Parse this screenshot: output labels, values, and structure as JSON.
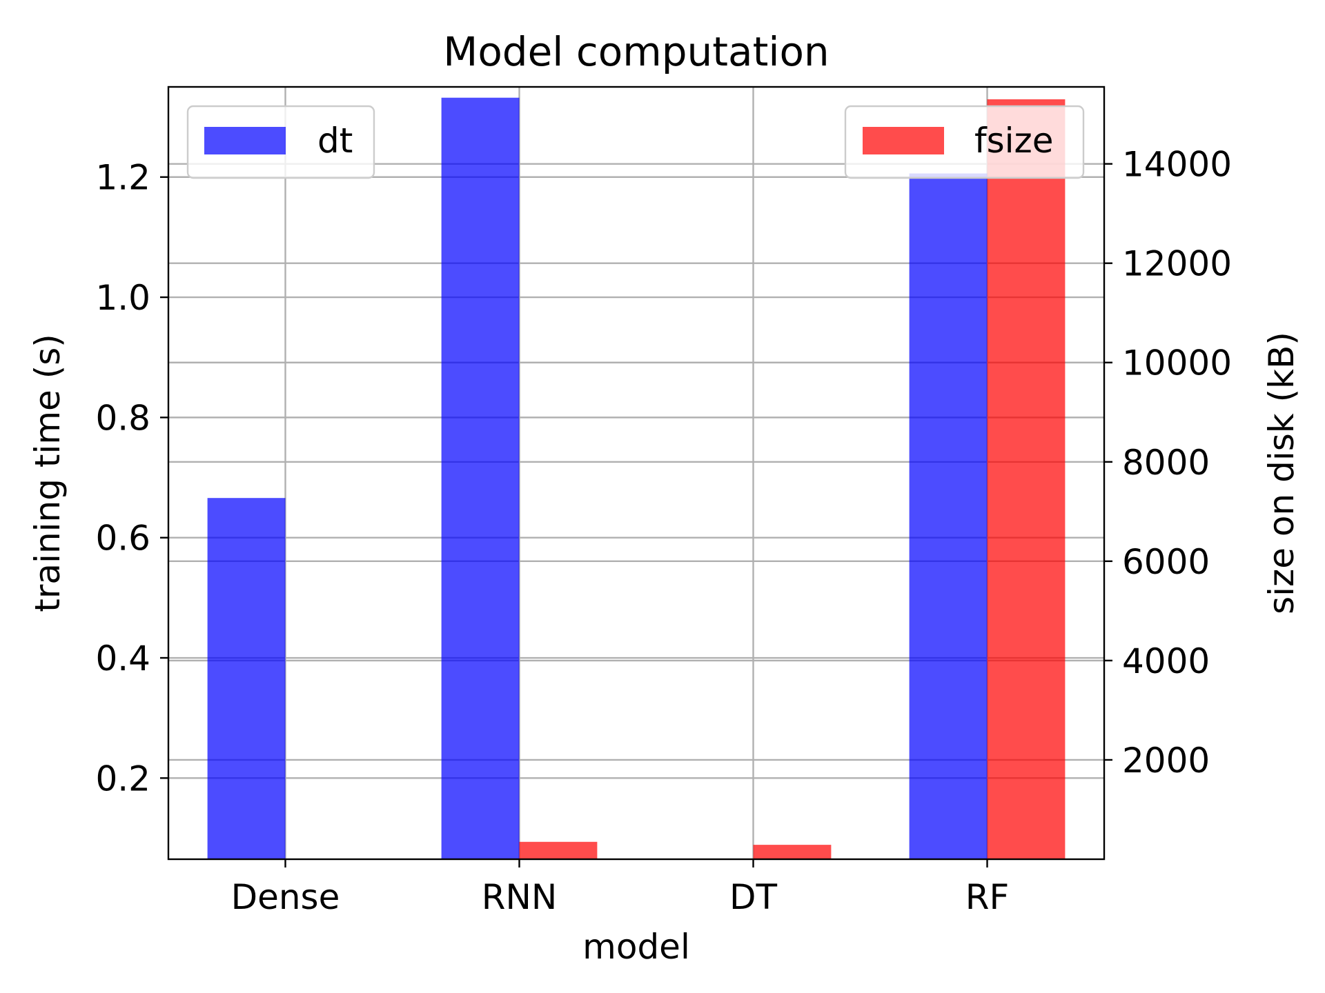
{
  "chart_data": {
    "type": "bar",
    "title": "Model computation",
    "xlabel": "model",
    "ylabel_left": "training time (s)",
    "ylabel_right": "size on disk (kB)",
    "categories": [
      "Dense",
      "RNN",
      "DT",
      "RF"
    ],
    "series": [
      {
        "name": "dt",
        "axis": "left",
        "color": "#0000ff",
        "opacity": 0.7,
        "values": [
          0.666,
          1.332,
          0.065,
          1.206
        ]
      },
      {
        "name": "fsize",
        "axis": "right",
        "color": "#ff0000",
        "opacity": 0.7,
        "values": [
          5,
          350,
          290,
          15300
        ]
      }
    ],
    "ylim_left": [
      0.065,
      1.35
    ],
    "yticks_left": [
      "0.2",
      "0.4",
      "0.6",
      "0.8",
      "1.0",
      "1.2"
    ],
    "ylim_right": [
      0,
      15550
    ],
    "yticks_right": [
      "2000",
      "4000",
      "6000",
      "8000",
      "10000",
      "12000",
      "14000"
    ],
    "grid": true,
    "legend_left": "top-left",
    "legend_right": "top-right"
  }
}
